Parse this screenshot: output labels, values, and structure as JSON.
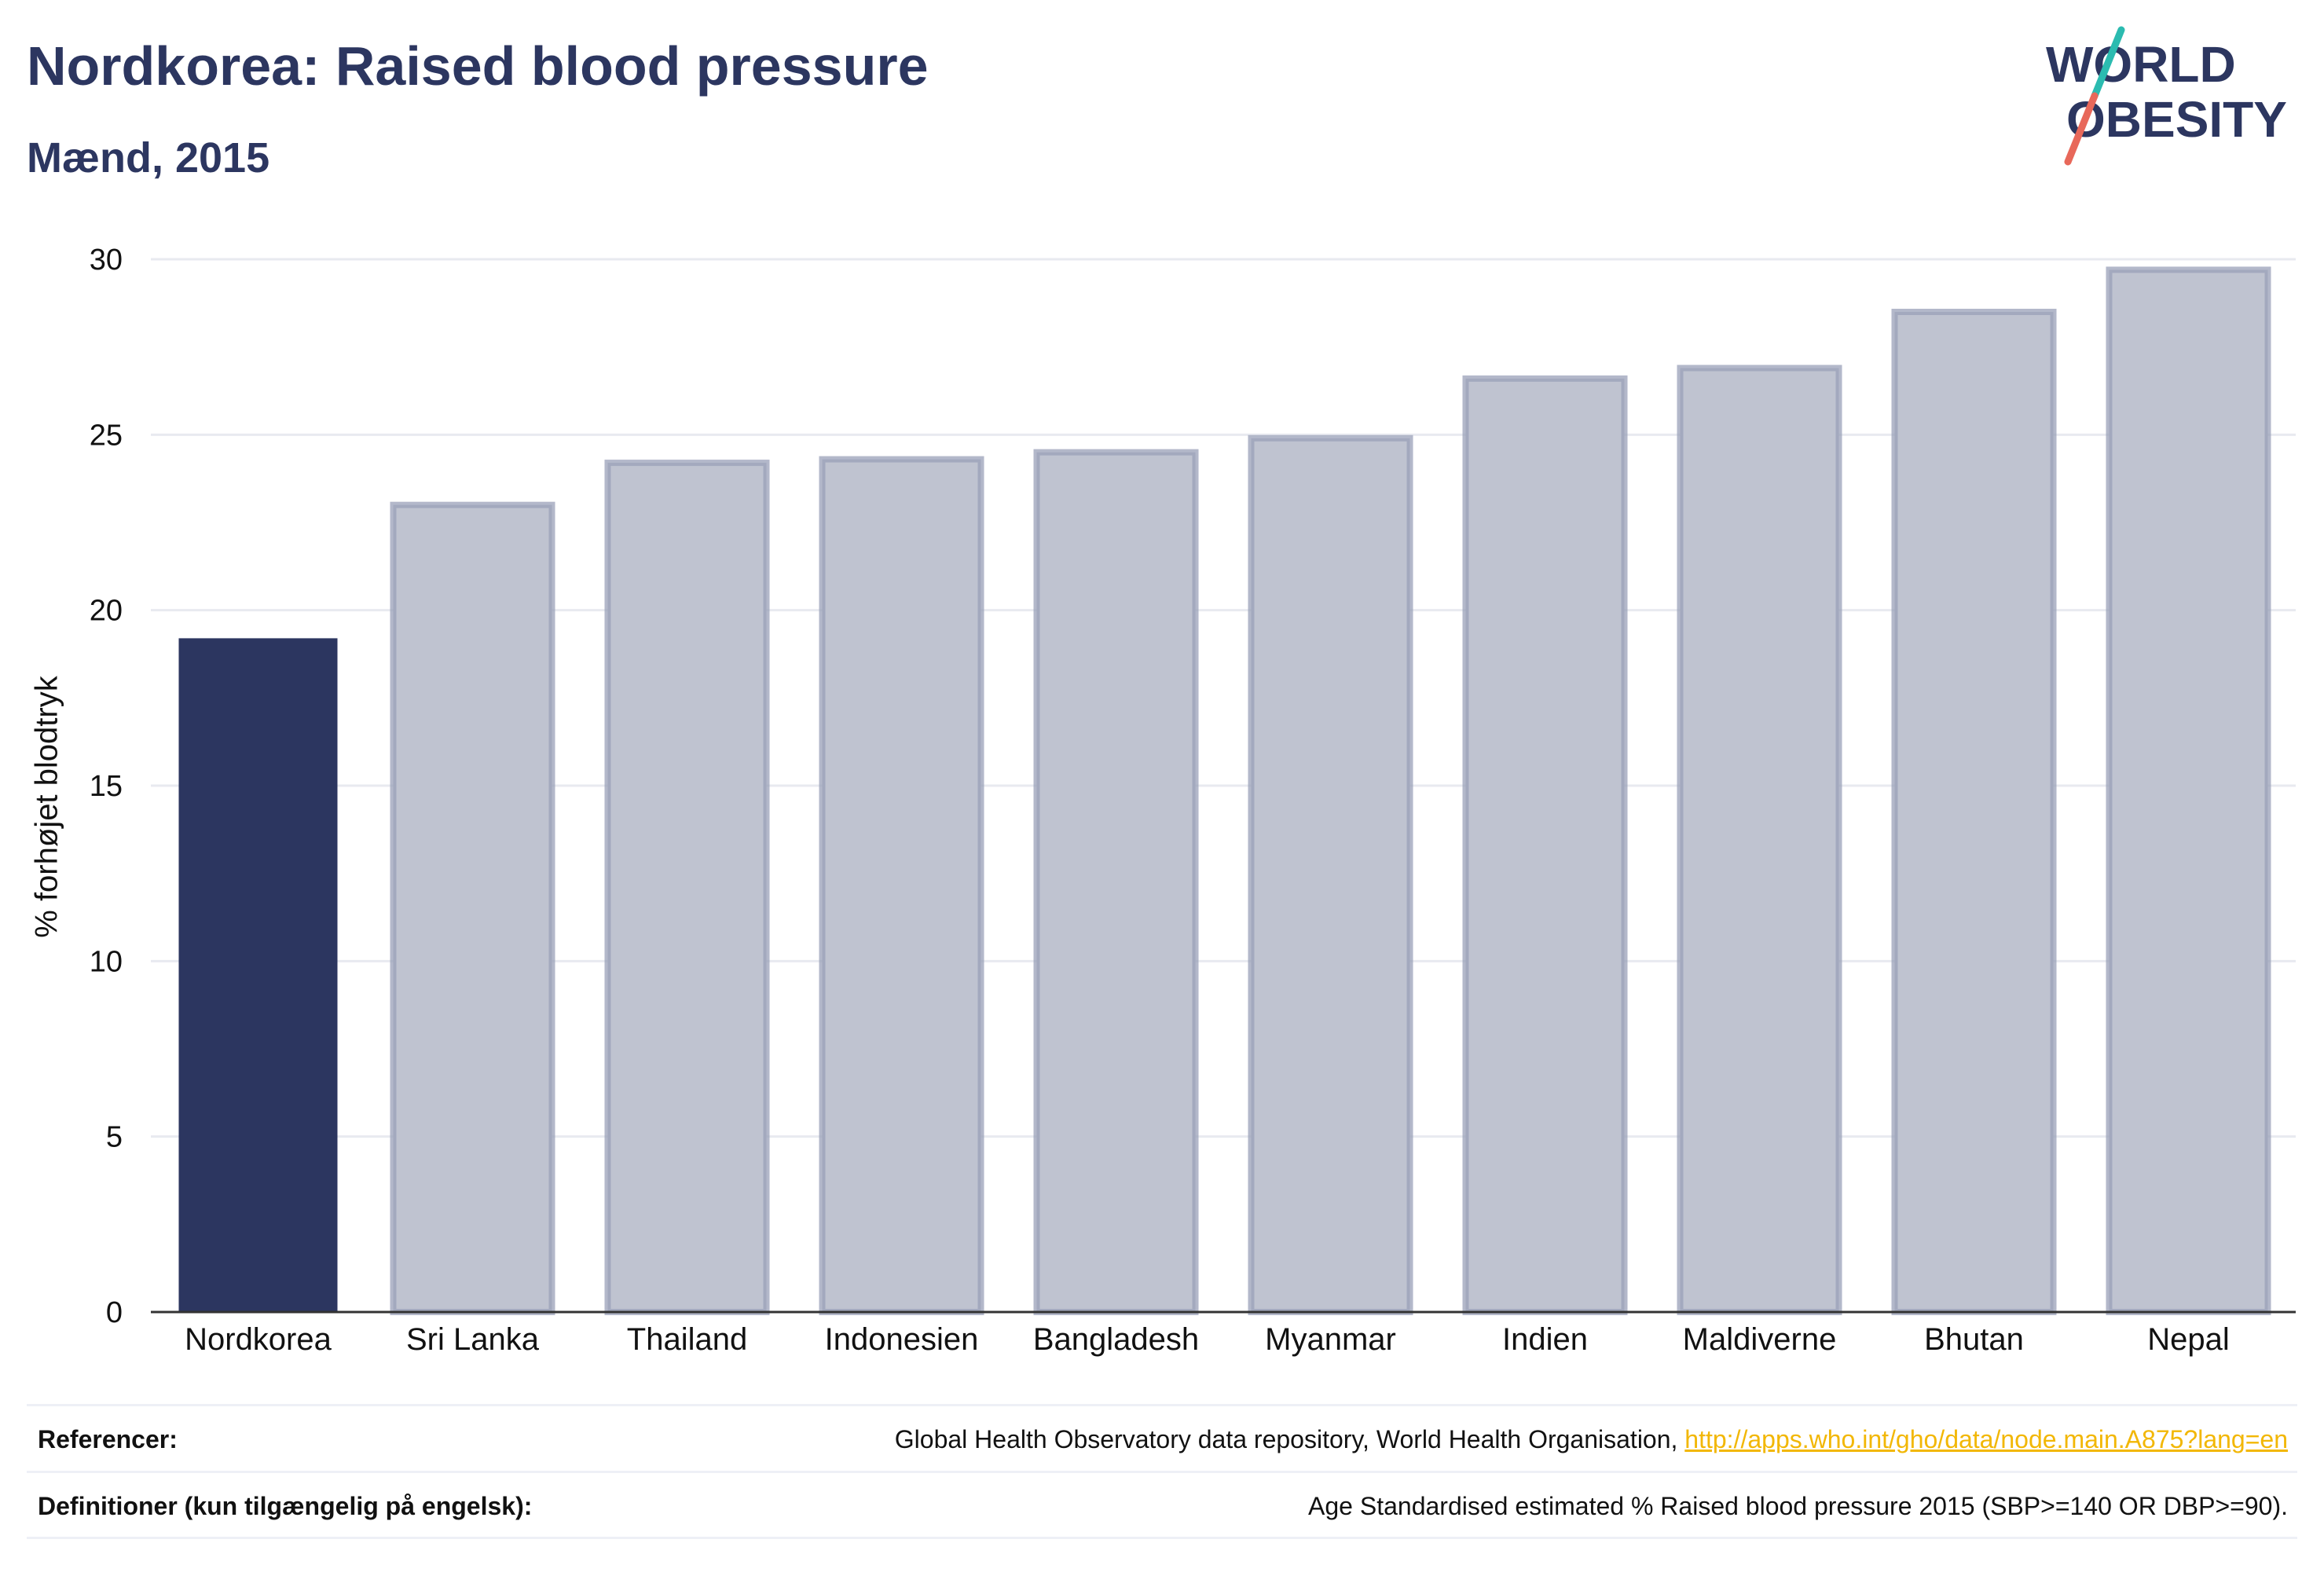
{
  "header": {
    "title": "Nordkorea: Raised blood pressure",
    "subtitle": "Mænd, 2015",
    "logo_text": [
      "WORLD",
      "OBESITY"
    ]
  },
  "colors": {
    "highlight_bar": "#2c3660",
    "other_bar_fill": "#bfc3d0",
    "other_bar_stroke": "#9aa0b8",
    "logo_teal": "#2bbbb0",
    "logo_red": "#e8685a",
    "link": "#f2b705"
  },
  "chart_data": {
    "type": "bar",
    "title": "",
    "xlabel": "",
    "ylabel": "% forhøjet blodtryk",
    "categories": [
      "Nordkorea",
      "Sri Lanka",
      "Thailand",
      "Indonesien",
      "Bangladesh",
      "Myanmar",
      "Indien",
      "Maldiverne",
      "Bhutan",
      "Nepal"
    ],
    "values": [
      19.2,
      23.0,
      24.2,
      24.3,
      24.5,
      24.9,
      26.6,
      26.9,
      28.5,
      29.7
    ],
    "highlight": "Nordkorea",
    "ylim": [
      0,
      30
    ],
    "yticks": [
      0,
      5,
      10,
      15,
      20,
      25,
      30
    ],
    "grid": true,
    "legend": "none"
  },
  "footer": {
    "references_label": "Referencer:",
    "references_text": "Global Health Observatory data repository, World Health Organisation, ",
    "references_link": "http://apps.who.int/gho/data/node.main.A875?lang=en",
    "definitions_label": "Definitioner (kun tilgængelig på engelsk):",
    "definitions_text": "Age Standardised estimated % Raised blood pressure 2015 (SBP>=140 OR DBP>=90)."
  }
}
